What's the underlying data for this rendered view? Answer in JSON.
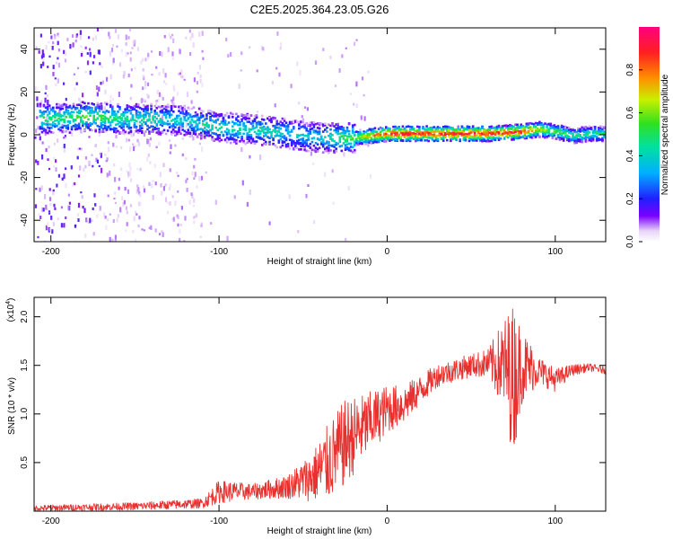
{
  "chart_data": [
    {
      "type": "heatmap",
      "title": "C2E5.2025.364.23.05.G26",
      "xlabel": "Height of straight line (km)",
      "ylabel": "Frequency (Hz)",
      "xlim": [
        -210,
        130
      ],
      "ylim": [
        -50,
        50
      ],
      "xticks": [
        -200,
        -100,
        0,
        100
      ],
      "yticks": [
        -40,
        -20,
        0,
        20,
        40
      ],
      "ridge": {
        "x": [
          -200,
          -180,
          -160,
          -140,
          -120,
          -100,
          -80,
          -60,
          -40,
          -20,
          0,
          20,
          40,
          60,
          80,
          90,
          100,
          110,
          120,
          130
        ],
        "frequency": [
          8,
          9,
          8,
          8,
          7,
          4,
          3,
          1,
          -1,
          -1,
          1,
          1,
          1,
          1,
          2,
          3,
          2,
          0,
          1,
          1
        ],
        "amplitude": [
          0.5,
          0.55,
          0.5,
          0.45,
          0.4,
          0.45,
          0.45,
          0.4,
          0.4,
          0.6,
          0.95,
          0.95,
          0.95,
          0.95,
          0.9,
          0.7,
          0.6,
          0.5,
          0.5,
          0.5
        ]
      },
      "colorbar": {
        "label": "Normalized spectral amplitude",
        "range": [
          0,
          1
        ],
        "ticks": [
          "0.0",
          "0.2",
          "0.4",
          "0.6",
          "0.8"
        ]
      }
    },
    {
      "type": "line",
      "xlabel": "Height of straight line (km)",
      "ylabel": "SNR (10 * v/v)",
      "yscale_label": "(x10",
      "yscale_exp": "4",
      "xlim": [
        -210,
        130
      ],
      "ylim": [
        0,
        2.2
      ],
      "xticks": [
        -200,
        -100,
        0,
        100
      ],
      "yticks": [
        0.5,
        1.0,
        1.5,
        2.0
      ],
      "ytick_labels": [
        "0.5",
        "1.0",
        "1.5",
        "2.0"
      ],
      "series": [
        {
          "name": "SNR",
          "color": "#e8312f",
          "envelope": {
            "x": [
              -210,
              -150,
              -110,
              -100,
              -80,
              -60,
              -45,
              -35,
              -25,
              -15,
              0,
              10,
              20,
              30,
              40,
              50,
              60,
              70,
              75,
              80,
              90,
              100,
              110,
              120,
              130
            ],
            "mean": [
              0.03,
              0.05,
              0.08,
              0.2,
              0.2,
              0.25,
              0.35,
              0.5,
              0.7,
              0.85,
              1.05,
              1.1,
              1.25,
              1.4,
              1.45,
              1.5,
              1.52,
              1.5,
              1.35,
              1.5,
              1.45,
              1.35,
              1.45,
              1.48,
              1.45
            ],
            "spread": [
              0.03,
              0.04,
              0.05,
              0.12,
              0.08,
              0.12,
              0.25,
              0.4,
              0.45,
              0.35,
              0.25,
              0.2,
              0.15,
              0.12,
              0.12,
              0.12,
              0.15,
              0.5,
              0.8,
              0.4,
              0.15,
              0.12,
              0.06,
              0.04,
              0.04
            ]
          }
        }
      ]
    }
  ]
}
